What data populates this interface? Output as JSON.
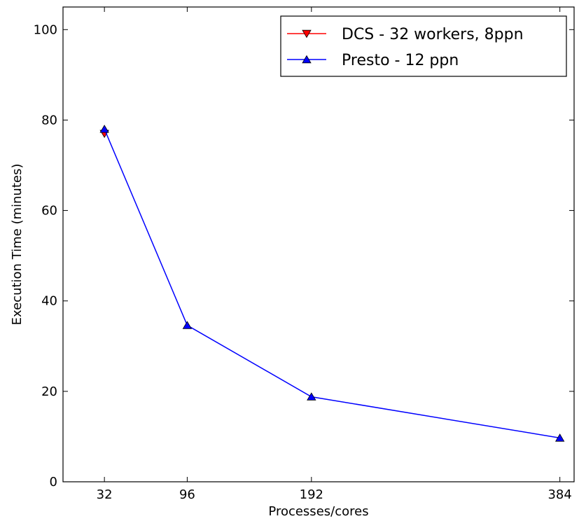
{
  "chart_data": {
    "type": "line",
    "title": "",
    "xlabel": "Processes/cores",
    "ylabel": "Execution Time (minutes)",
    "xlim": [
      0,
      395
    ],
    "ylim": [
      0,
      105
    ],
    "x_ticks": [
      32,
      96,
      192,
      384
    ],
    "x_tick_labels": [
      "32",
      "96",
      "192",
      "384"
    ],
    "y_ticks": [
      0,
      20,
      40,
      60,
      80,
      100
    ],
    "y_tick_labels": [
      "0",
      "20",
      "40",
      "60",
      "80",
      "100"
    ],
    "grid": false,
    "legend_position": "top-right",
    "series": [
      {
        "name": "DCS - 32 workers, 8ppn",
        "color": "#ff0000",
        "marker": "triangle-down",
        "x": [
          32
        ],
        "y": [
          77
        ]
      },
      {
        "name": "Presto - 12 ppn",
        "color": "#0000ff",
        "marker": "triangle-up",
        "x": [
          32,
          96,
          192,
          384
        ],
        "y": [
          78,
          34.6,
          18.8,
          9.7
        ]
      }
    ]
  }
}
